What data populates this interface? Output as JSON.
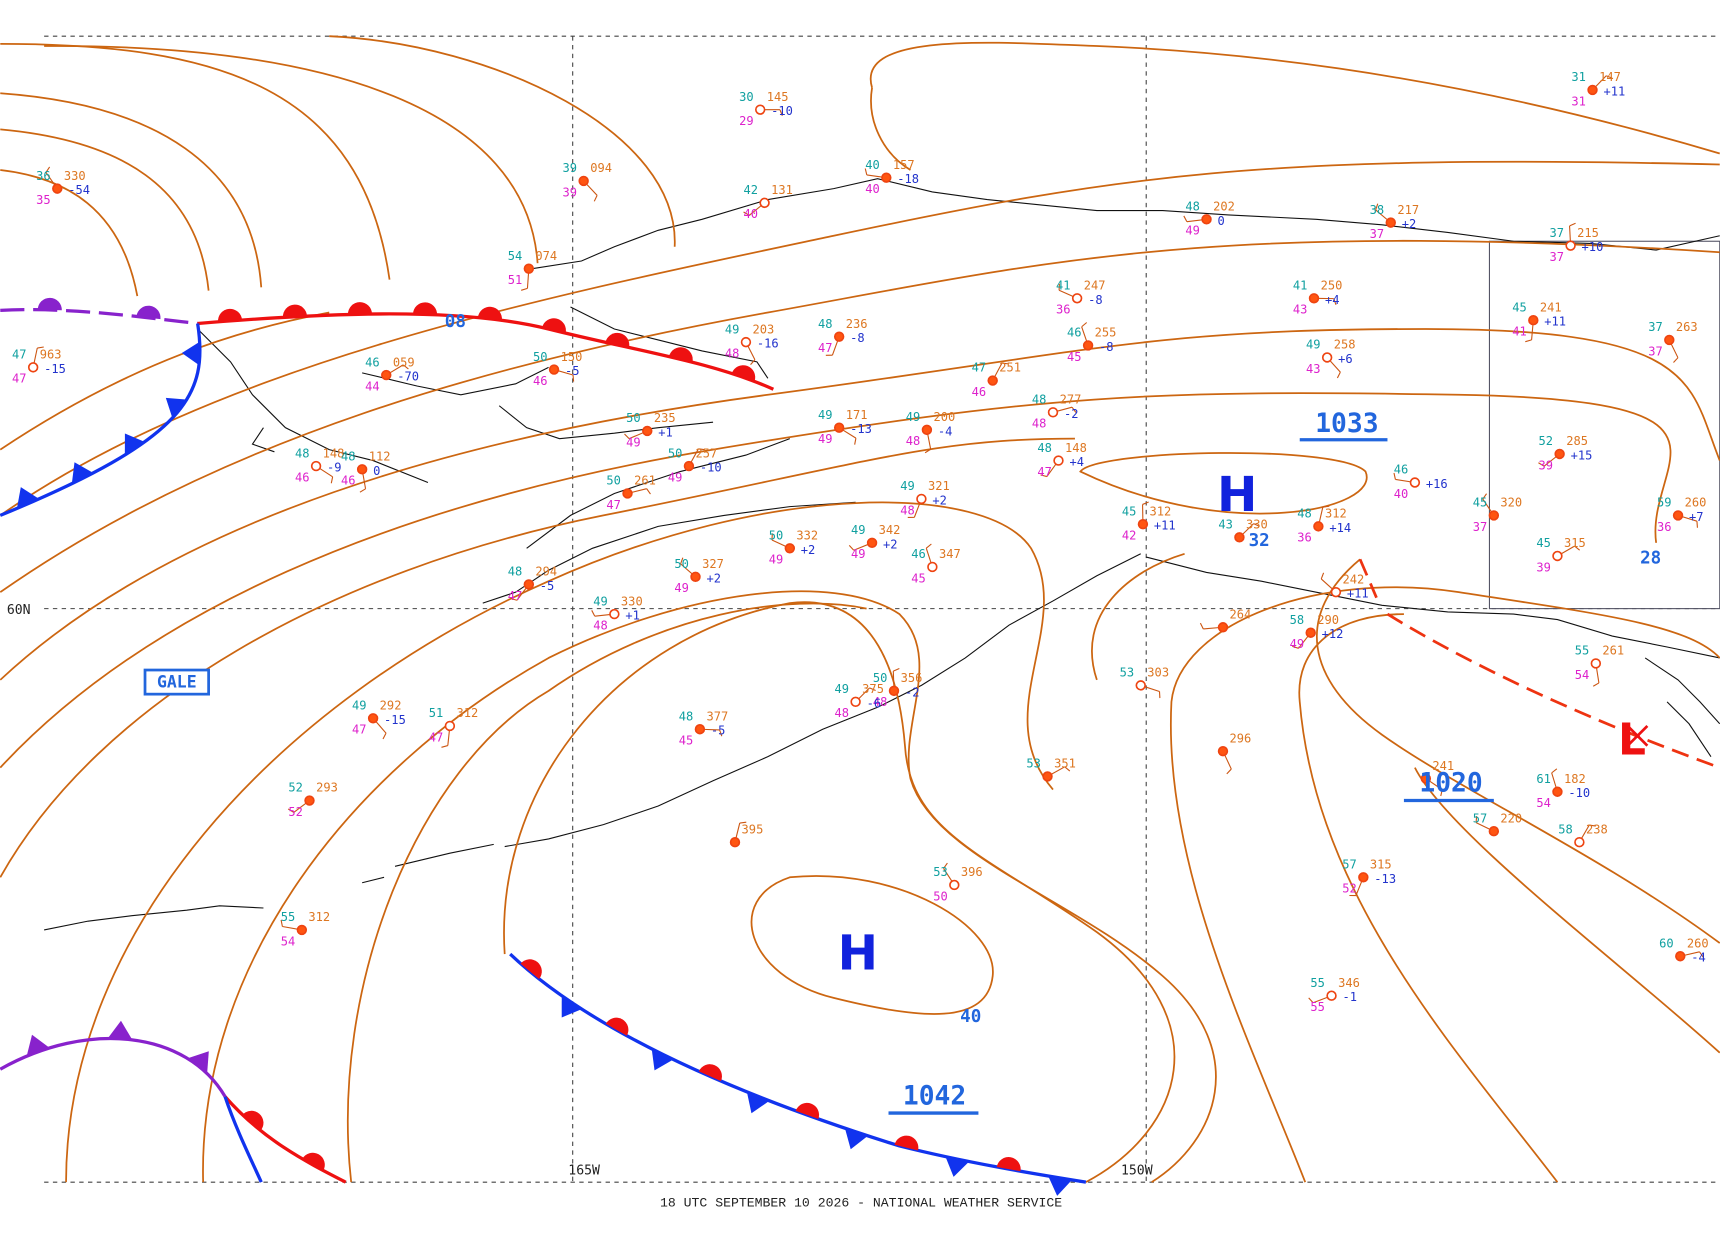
{
  "footer": "18 UTC SEPTEMBER 10 2026 - NATIONAL WEATHER SERVICE",
  "grid_labels": [
    "165W",
    "150W",
    "60N"
  ],
  "centers": [
    "H",
    "H",
    "L"
  ],
  "pressure_labels": [
    "1033",
    "1020",
    "1042"
  ],
  "isobar_labels": [
    "08",
    "40",
    "32",
    "28"
  ],
  "warning": "GALE",
  "stations": [
    {
      "temp": "30",
      "pressure": "145",
      "dew": "29",
      "tendency": "-10"
    },
    {
      "temp": "39",
      "pressure": "094",
      "dew": "39"
    },
    {
      "temp": "54",
      "pressure": "074",
      "dew": "51"
    },
    {
      "temp": "42",
      "pressure": "131",
      "dew": "40"
    },
    {
      "temp": "40",
      "pressure": "157",
      "dew": "40",
      "tendency": "-18"
    },
    {
      "temp": "36",
      "pressure": "330",
      "dew": "35",
      "tendency": "-54"
    },
    {
      "temp": "47",
      "pressure": "963",
      "dew": "47",
      "tendency": "-15"
    },
    {
      "temp": "46",
      "pressure": "059",
      "dew": "44",
      "tendency": "-70"
    },
    {
      "temp": "50",
      "pressure": "150",
      "dew": "46",
      "tendency": "-5"
    },
    {
      "temp": "49",
      "pressure": "203",
      "dew": "48",
      "tendency": "-16"
    },
    {
      "temp": "48",
      "pressure": "236",
      "dew": "47",
      "tendency": "-8"
    },
    {
      "temp": "50",
      "pressure": "235",
      "dew": "49",
      "tendency": "+1"
    },
    {
      "temp": "41",
      "pressure": "247",
      "dew": "36",
      "tendency": "-8"
    },
    {
      "temp": "46",
      "pressure": "255",
      "dew": "45",
      "tendency": "-8"
    },
    {
      "temp": "47",
      "pressure": "251",
      "dew": "46"
    },
    {
      "temp": "48",
      "pressure": "277",
      "dew": "48",
      "tendency": "-2"
    },
    {
      "temp": "49",
      "pressure": "171",
      "dew": "49",
      "tendency": "-13"
    },
    {
      "temp": "49",
      "pressure": "200",
      "dew": "48",
      "tendency": "-4"
    },
    {
      "temp": "48",
      "pressure": "148",
      "dew": "47",
      "tendency": "+4"
    },
    {
      "temp": "48",
      "pressure": "202",
      "dew": "49",
      "tendency": "0"
    },
    {
      "temp": "38",
      "pressure": "217",
      "dew": "37",
      "tendency": "+2"
    },
    {
      "temp": "37",
      "pressure": "215",
      "dew": "37",
      "tendency": "+10"
    },
    {
      "temp": "31",
      "pressure": "147",
      "dew": "31",
      "tendency": "+11"
    },
    {
      "temp": "41",
      "pressure": "250",
      "dew": "43",
      "tendency": "+4"
    },
    {
      "temp": "49",
      "pressure": "258",
      "dew": "43",
      "tendency": "+6"
    },
    {
      "temp": "45",
      "pressure": "241",
      "dew": "41",
      "tendency": "+11"
    },
    {
      "temp": "52",
      "pressure": "285",
      "dew": "39",
      "tendency": "+15"
    },
    {
      "temp": "46",
      "dew": "40",
      "tendency": "+16"
    },
    {
      "temp": "45",
      "pressure": "320",
      "dew": "37"
    },
    {
      "temp": "48",
      "pressure": "312",
      "dew": "36",
      "tendency": "+14"
    },
    {
      "temp": "45",
      "pressure": "315",
      "dew": "39"
    },
    {
      "temp": "59",
      "pressure": "260",
      "dew": "36",
      "tendency": "+7"
    },
    {
      "temp": "37",
      "pressure": "263",
      "dew": "37"
    },
    {
      "temp": "49",
      "pressure": "321",
      "dew": "48",
      "tendency": "+2"
    },
    {
      "temp": "49",
      "pressure": "342",
      "dew": "49",
      "tendency": "+2"
    },
    {
      "temp": "50",
      "pressure": "332",
      "dew": "49",
      "tendency": "+2"
    },
    {
      "temp": "46",
      "pressure": "347",
      "dew": "45"
    },
    {
      "temp": "50",
      "pressure": "257",
      "dew": "49",
      "tendency": "-10"
    },
    {
      "temp": "50",
      "pressure": "261",
      "dew": "47"
    },
    {
      "temp": "48",
      "pressure": "148",
      "dew": "46",
      "tendency": "-9"
    },
    {
      "temp": "48",
      "pressure": "112",
      "dew": "46",
      "tendency": "0"
    },
    {
      "temp": "48",
      "pressure": "294",
      "dew": "47",
      "tendency": "-5"
    },
    {
      "temp": "49",
      "pressure": "330",
      "dew": "48",
      "tendency": "+1"
    },
    {
      "temp": "50",
      "pressure": "327",
      "dew": "49",
      "tendency": "+2"
    },
    {
      "temp": "50",
      "pressure": "356",
      "dew": "48",
      "tendency": "-2"
    },
    {
      "temp": "49",
      "pressure": "375",
      "dew": "48",
      "tendency": "-6"
    },
    {
      "temp": "48",
      "pressure": "377",
      "dew": "45",
      "tendency": "-5"
    },
    {
      "temp": "49",
      "pressure": "292",
      "dew": "47",
      "tendency": "-15"
    },
    {
      "temp": "51",
      "pressure": "312",
      "dew": "47"
    },
    {
      "temp": "52",
      "pressure": "293",
      "dew": "52"
    },
    {
      "temp": "55",
      "pressure": "312",
      "dew": "54"
    },
    {
      "temp": "53",
      "pressure": "396",
      "dew": "50"
    },
    {
      "pressure": "395"
    },
    {
      "temp": "53",
      "pressure": "351"
    },
    {
      "temp": "53",
      "pressure": "303"
    },
    {
      "pressure": "296"
    },
    {
      "temp": "57",
      "pressure": "315",
      "dew": "52",
      "tendency": "-13"
    },
    {
      "temp": "55",
      "pressure": "346",
      "dew": "55",
      "tendency": "-1"
    },
    {
      "temp": "57",
      "pressure": "220"
    },
    {
      "temp": "61",
      "pressure": "182",
      "dew": "54",
      "tendency": "-10"
    },
    {
      "temp": "58",
      "pressure": "238"
    },
    {
      "temp": "60",
      "pressure": "260",
      "tendency": "-4"
    },
    {
      "pressure": "241"
    },
    {
      "temp": "55",
      "pressure": "261",
      "dew": "54"
    },
    {
      "temp": "58",
      "pressure": "290",
      "dew": "49",
      "tendency": "+12"
    },
    {
      "pressure": "264"
    },
    {
      "pressure": "242",
      "tendency": "+11"
    },
    {
      "temp": "45",
      "pressure": "312",
      "dew": "42",
      "tendency": "+11"
    },
    {
      "temp": "43",
      "pressure": "330"
    }
  ]
}
